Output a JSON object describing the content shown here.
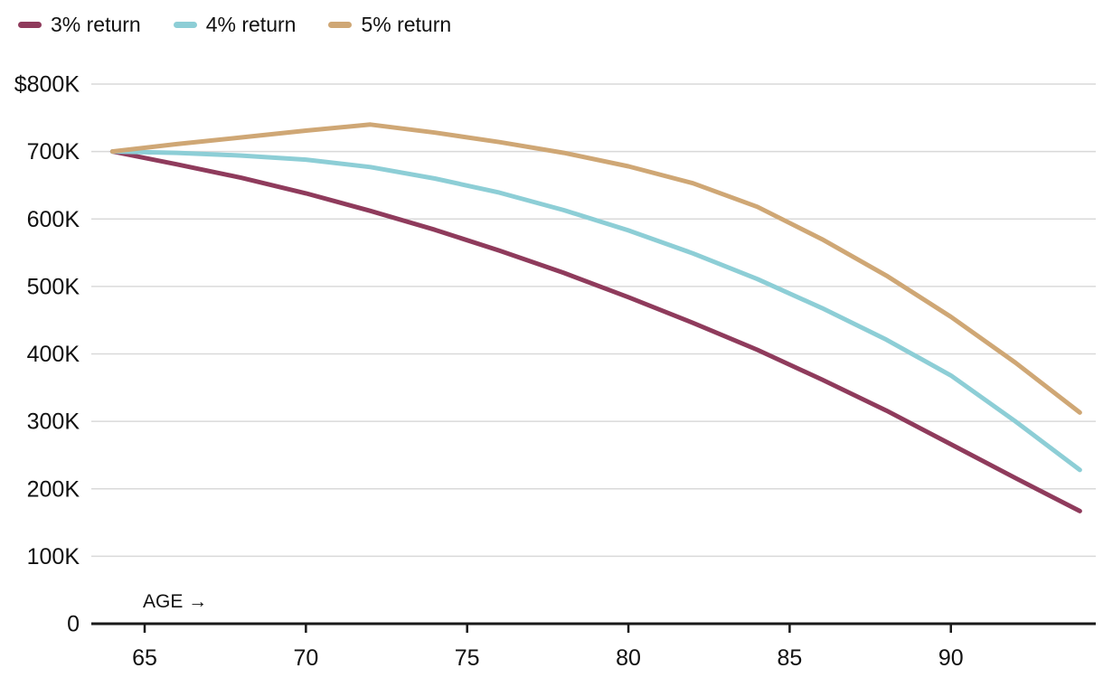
{
  "legend": {
    "items": [
      {
        "label": "3% return",
        "color": "#8f3b5c"
      },
      {
        "label": "4% return",
        "color": "#8dced6"
      },
      {
        "label": "5% return",
        "color": "#cfa775"
      }
    ]
  },
  "chart_data": {
    "type": "line",
    "title": "",
    "xlabel": "AGE →",
    "ylabel": "",
    "x": [
      64,
      66,
      68,
      70,
      72,
      74,
      76,
      78,
      80,
      82,
      84,
      86,
      88,
      90,
      92,
      94
    ],
    "series": [
      {
        "name": "3% return",
        "color": "#8f3b5c",
        "values": [
          700,
          681,
          661,
          638,
          612,
          584,
          553,
          520,
          484,
          446,
          406,
          362,
          316,
          266,
          216,
          167
        ]
      },
      {
        "name": "4% return",
        "color": "#8dced6",
        "values": [
          700,
          698,
          694,
          688,
          677,
          660,
          639,
          613,
          583,
          549,
          511,
          468,
          421,
          368,
          300,
          228
        ]
      },
      {
        "name": "5% return",
        "color": "#cfa775",
        "values": [
          700,
          711,
          721,
          731,
          740,
          728,
          714,
          698,
          678,
          653,
          618,
          570,
          516,
          455,
          387,
          313
        ]
      }
    ],
    "x_ticks": [
      65,
      70,
      75,
      80,
      85,
      90
    ],
    "y_ticks": [
      {
        "value": 800,
        "label": "$800K"
      },
      {
        "value": 700,
        "label": "700K"
      },
      {
        "value": 600,
        "label": "600K"
      },
      {
        "value": 500,
        "label": "500K"
      },
      {
        "value": 400,
        "label": "400K"
      },
      {
        "value": 300,
        "label": "300K"
      },
      {
        "value": 200,
        "label": "200K"
      },
      {
        "value": 100,
        "label": "100K"
      },
      {
        "value": 0,
        "label": "0"
      }
    ],
    "xlim": [
      64,
      94
    ],
    "ylim": [
      0,
      800
    ],
    "values_unit": "thousand dollars",
    "grid": true,
    "legend_position": "top-left",
    "colors": {
      "grid": "#d9d9d9",
      "axis": "#1a1a1a",
      "text": "#111111",
      "background": "#ffffff"
    }
  }
}
